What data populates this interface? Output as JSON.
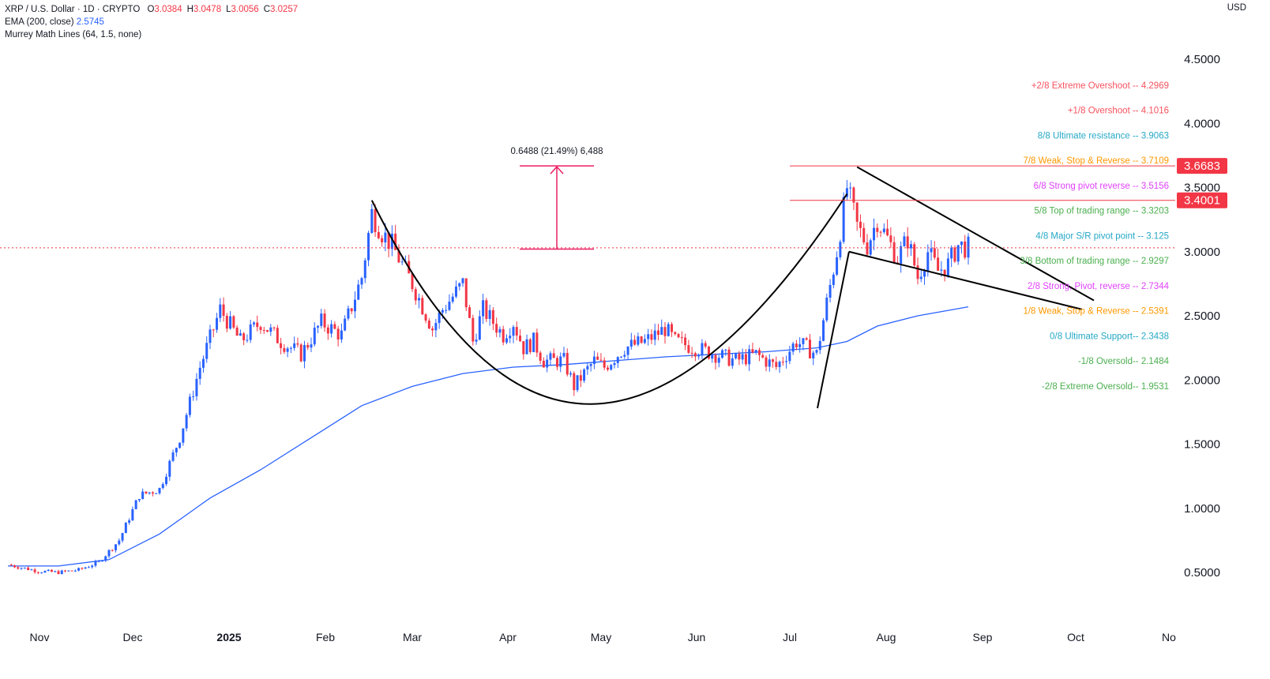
{
  "header": {
    "symbol": "XRP / U.S. Dollar · 1D · CRYPTO",
    "ohlc": [
      {
        "k": "O",
        "v": "3.0384"
      },
      {
        "k": "H",
        "v": "3.0478"
      },
      {
        "k": "L",
        "v": "3.0056"
      },
      {
        "k": "C",
        "v": "3.0257"
      }
    ],
    "ema_label": "EMA (200, close)",
    "ema_value": "2.5745",
    "murrey_label": "Murrey Math Lines (64, 1.5, none)",
    "currency": "USD"
  },
  "chart_data": {
    "type": "candlestick",
    "x_ticks": [
      "Nov",
      "Dec",
      "2025",
      "Feb",
      "Mar",
      "Apr",
      "May",
      "Jun",
      "Jul",
      "Aug",
      "Sep",
      "Oct",
      "No"
    ],
    "y_ticks": [
      "0.5000",
      "1.0000",
      "1.5000",
      "2.0000",
      "2.5000",
      "3.0000",
      "3.5000",
      "4.0000",
      "4.5000"
    ],
    "y_tick_values": [
      0.5,
      1.0,
      1.5,
      2.0,
      2.5,
      3.0,
      3.5,
      4.0,
      4.5
    ],
    "ylim": [
      0.3,
      4.8
    ],
    "price_tags": [
      {
        "label": "3.6683",
        "value": 3.6683,
        "color": "#f23645"
      },
      {
        "label": "3.4001",
        "value": 3.4001,
        "color": "#f23645"
      }
    ],
    "measure_label": "0.6488 (21.49%) 6,488",
    "murrey_lines": [
      {
        "label": "+2/8 Extreme Overshoot --  4.2969",
        "value": 4.2969,
        "color": "#f7525f"
      },
      {
        "label": "+1/8 Overshoot --  4.1016",
        "value": 4.1016,
        "color": "#f7525f"
      },
      {
        "label": "8/8 Ultimate resistance --  3.9063",
        "value": 3.9063,
        "color": "#26a8c6"
      },
      {
        "label": "7/8 Weak, Stop & Reverse --  3.7109",
        "value": 3.7109,
        "color": "#ff9800"
      },
      {
        "label": "6/8 Strong pivot reverse --  3.5156",
        "value": 3.5156,
        "color": "#e040fb"
      },
      {
        "label": "5/8 Top of trading range --  3.3203",
        "value": 3.3203,
        "color": "#4caf50"
      },
      {
        "label": "4/8 Major S/R pivot point --  3.125",
        "value": 3.125,
        "color": "#26a8c6"
      },
      {
        "label": "3/8 Bottom of trading range --  2.9297",
        "value": 2.9297,
        "color": "#4caf50"
      },
      {
        "label": "2/8 Strong, Pivot, reverse --  2.7344",
        "value": 2.7344,
        "color": "#e040fb"
      },
      {
        "label": "1/8 Weak, Stop & Reverse --  2.5391",
        "value": 2.5391,
        "color": "#ff9800"
      },
      {
        "label": "0/8 Ultimate Support--  2.3438",
        "value": 2.3438,
        "color": "#26a8c6"
      },
      {
        "label": "-1/8 Oversold--  2.1484",
        "value": 2.1484,
        "color": "#4caf50"
      },
      {
        "label": "-2/8 Extreme Oversold--  1.9531",
        "value": 1.9531,
        "color": "#4caf50"
      }
    ],
    "close_anchors": [
      [
        0,
        0.56
      ],
      [
        3,
        0.51
      ],
      [
        5,
        0.5
      ],
      [
        7,
        0.52
      ],
      [
        9,
        0.58
      ],
      [
        11,
        0.75
      ],
      [
        13,
        1.1
      ],
      [
        15,
        1.15
      ],
      [
        17,
        1.55
      ],
      [
        19,
        2.1
      ],
      [
        21,
        2.55
      ],
      [
        23,
        2.3
      ],
      [
        25,
        2.45
      ],
      [
        27,
        2.3
      ],
      [
        29,
        2.2
      ],
      [
        31,
        2.45
      ],
      [
        33,
        2.35
      ],
      [
        35,
        2.8
      ],
      [
        36,
        3.3
      ],
      [
        37,
        3.15
      ],
      [
        38,
        3.05
      ],
      [
        40,
        2.75
      ],
      [
        42,
        2.4
      ],
      [
        43,
        2.55
      ],
      [
        45,
        2.75
      ],
      [
        46,
        2.3
      ],
      [
        47,
        2.55
      ],
      [
        49,
        2.35
      ],
      [
        50,
        2.45
      ],
      [
        51,
        2.25
      ],
      [
        52,
        2.3
      ],
      [
        53,
        2.15
      ],
      [
        55,
        2.15
      ],
      [
        56,
        1.95
      ],
      [
        57,
        2.05
      ],
      [
        58,
        2.15
      ],
      [
        59,
        2.1
      ],
      [
        61,
        2.25
      ],
      [
        63,
        2.3
      ],
      [
        65,
        2.4
      ],
      [
        66,
        2.3
      ],
      [
        68,
        2.25
      ],
      [
        70,
        2.2
      ],
      [
        72,
        2.15
      ],
      [
        74,
        2.2
      ],
      [
        76,
        2.1
      ],
      [
        78,
        2.3
      ],
      [
        80,
        2.2
      ],
      [
        81,
        2.6
      ],
      [
        82,
        3.0
      ],
      [
        83,
        3.5
      ],
      [
        84,
        3.2
      ],
      [
        85,
        3.05
      ],
      [
        86,
        3.25
      ],
      [
        87,
        3.1
      ],
      [
        88,
        2.95
      ],
      [
        89,
        3.1
      ],
      [
        90,
        2.8
      ],
      [
        91,
        3.0
      ],
      [
        92,
        2.85
      ],
      [
        93,
        2.9
      ],
      [
        94,
        3.05
      ],
      [
        95,
        3.03
      ]
    ],
    "ema_points": [
      [
        0,
        0.55
      ],
      [
        5,
        0.55
      ],
      [
        10,
        0.6
      ],
      [
        15,
        0.8
      ],
      [
        20,
        1.08
      ],
      [
        25,
        1.3
      ],
      [
        30,
        1.55
      ],
      [
        35,
        1.8
      ],
      [
        40,
        1.95
      ],
      [
        45,
        2.05
      ],
      [
        50,
        2.1
      ],
      [
        55,
        2.12
      ],
      [
        60,
        2.15
      ],
      [
        65,
        2.18
      ],
      [
        70,
        2.2
      ],
      [
        75,
        2.22
      ],
      [
        80,
        2.25
      ],
      [
        83,
        2.3
      ],
      [
        86,
        2.42
      ],
      [
        90,
        2.5
      ],
      [
        95,
        2.57
      ]
    ],
    "x_range": [
      0,
      100
    ],
    "grid": false
  }
}
